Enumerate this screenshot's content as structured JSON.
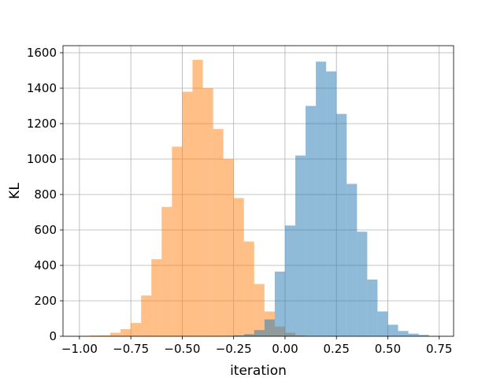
{
  "chart_data": {
    "type": "bar",
    "subtype": "overlapping-histogram",
    "title": "",
    "xlabel": "iteration",
    "ylabel": "KL",
    "xlim": [
      -1.08,
      0.82
    ],
    "ylim": [
      0,
      1640
    ],
    "xticks": [
      -1.0,
      -0.75,
      -0.5,
      -0.25,
      0.0,
      0.25,
      0.5,
      0.75
    ],
    "xtick_labels": [
      "−1.00",
      "−0.75",
      "−0.50",
      "−0.25",
      "0.00",
      "0.25",
      "0.50",
      "0.75"
    ],
    "yticks": [
      0,
      200,
      400,
      600,
      800,
      1000,
      1200,
      1400,
      1600
    ],
    "ytick_labels": [
      "0",
      "200",
      "400",
      "600",
      "800",
      "1000",
      "1200",
      "1400",
      "1600"
    ],
    "grid": true,
    "legend": "none",
    "series": [
      {
        "color": "#ff7f0e",
        "alpha": 0.5,
        "bin_edges": [
          -1.0,
          -0.95,
          -0.9,
          -0.85,
          -0.8,
          -0.75,
          -0.7,
          -0.65,
          -0.6,
          -0.55,
          -0.5,
          -0.45,
          -0.4,
          -0.35,
          -0.3,
          -0.25,
          -0.2,
          -0.15,
          -0.1,
          -0.05,
          0.0,
          0.05,
          0.1
        ],
        "counts": [
          2,
          4,
          5,
          20,
          40,
          75,
          230,
          435,
          730,
          1070,
          1380,
          1560,
          1400,
          1170,
          1000,
          780,
          535,
          295,
          140,
          55,
          20,
          5
        ]
      },
      {
        "color": "#1f77b4",
        "alpha": 0.5,
        "bin_edges": [
          -0.3,
          -0.25,
          -0.2,
          -0.15,
          -0.1,
          -0.05,
          0.0,
          0.05,
          0.1,
          0.15,
          0.2,
          0.25,
          0.3,
          0.35,
          0.4,
          0.45,
          0.5,
          0.55,
          0.6,
          0.65,
          0.7
        ],
        "counts": [
          2,
          5,
          12,
          35,
          95,
          365,
          625,
          1020,
          1300,
          1550,
          1495,
          1255,
          860,
          590,
          320,
          140,
          65,
          30,
          15,
          8
        ]
      }
    ]
  }
}
